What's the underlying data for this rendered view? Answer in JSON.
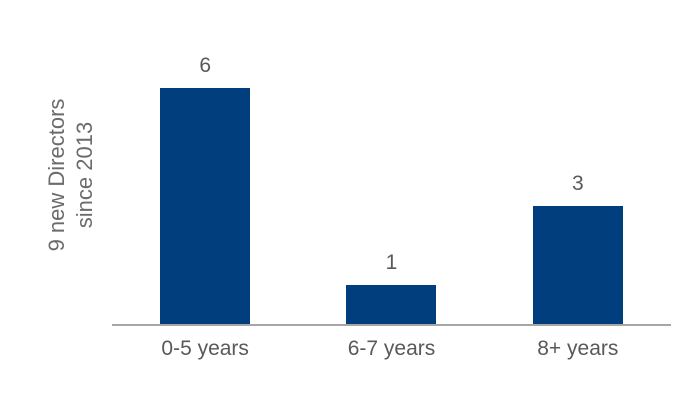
{
  "chart_data": {
    "type": "bar",
    "title": "",
    "ylabel": "9 new Directors since 2013",
    "ylabel_lines": [
      "9 new Directors",
      "since 2013"
    ],
    "xlabel": "",
    "categories": [
      "0-5 years",
      "6-7 years",
      "8+ years"
    ],
    "values": [
      6,
      1,
      3
    ],
    "ylim": [
      0,
      6
    ],
    "grid": false,
    "legend_position": "none",
    "value_labels_shown": true,
    "colors": {
      "bar": "#003e7d",
      "value_label": "#595959",
      "category_label": "#595959",
      "y_axis_label": "#6b6b6b",
      "axis_line": "#a6a6a6",
      "background": "#ffffff"
    }
  }
}
